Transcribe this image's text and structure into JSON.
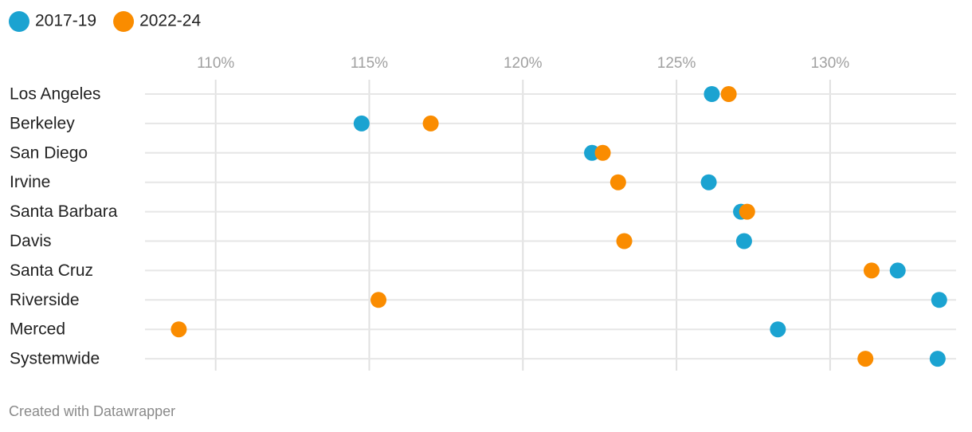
{
  "chart_data": {
    "type": "dot",
    "categories": [
      "Los Angeles",
      "Berkeley",
      "San Diego",
      "Irvine",
      "Santa Barbara",
      "Davis",
      "Santa Cruz",
      "Riverside",
      "Merced",
      "Systemwide"
    ],
    "series": [
      {
        "name": "2017-19",
        "color": "#1ba3d1",
        "values": [
          126.15,
          114.75,
          122.25,
          126.05,
          127.1,
          127.2,
          132.2,
          133.55,
          128.3,
          133.5
        ]
      },
      {
        "name": "2022-24",
        "color": "#fa8c00",
        "values": [
          126.7,
          117.0,
          122.6,
          123.1,
          127.3,
          123.3,
          131.35,
          115.3,
          108.8,
          131.15
        ]
      }
    ],
    "xlim": [
      107.7,
      134.1
    ],
    "xticks": [
      {
        "value": 110,
        "label": "110%"
      },
      {
        "value": 115,
        "label": "115%"
      },
      {
        "value": 120,
        "label": "120%"
      },
      {
        "value": 125,
        "label": "125%"
      },
      {
        "value": 130,
        "label": "130%"
      }
    ],
    "grid": true,
    "legend": "top-left",
    "credit": "Created with Datawrapper"
  }
}
